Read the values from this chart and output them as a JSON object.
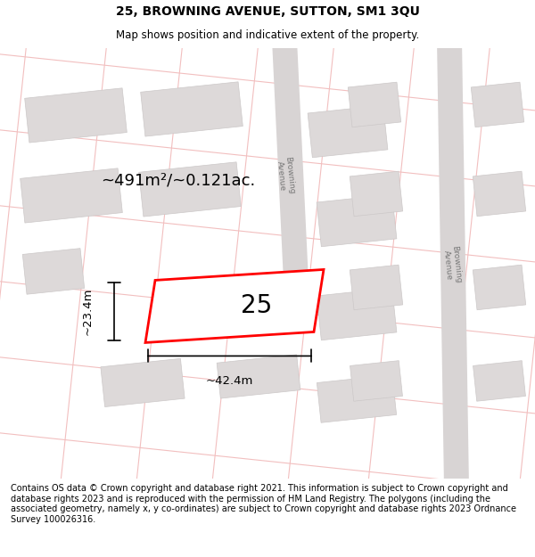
{
  "title": "25, BROWNING AVENUE, SUTTON, SM1 3QU",
  "subtitle": "Map shows position and indicative extent of the property.",
  "footer": "Contains OS data © Crown copyright and database right 2021. This information is subject to Crown copyright and database rights 2023 and is reproduced with the permission of HM Land Registry. The polygons (including the associated geometry, namely x, y co-ordinates) are subject to Crown copyright and database rights 2023 Ordnance Survey 100026316.",
  "area_label": "~491m²/~0.121ac.",
  "width_label": "~42.4m",
  "height_label": "~23.4m",
  "property_number": "25",
  "map_bg": "#efeded",
  "grid_color": "#f2bfbf",
  "block_color": "#ddd9d9",
  "block_edge": "#ccc8c8",
  "road_color": "#d8d4d4",
  "title_fontsize": 10,
  "subtitle_fontsize": 8.5,
  "footer_fontsize": 7,
  "label_fontsize": 9.5,
  "number_fontsize": 20,
  "area_fontsize": 13
}
